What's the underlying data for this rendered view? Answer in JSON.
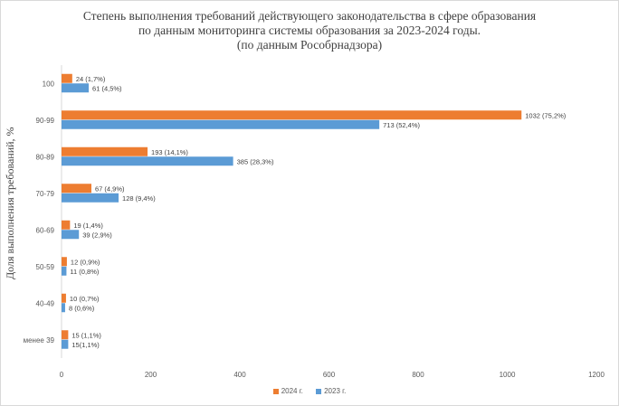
{
  "chart_data": {
    "type": "bar",
    "orientation": "horizontal",
    "title_lines": [
      "Степень выполнения требований действующего законодательства  в сфере образования",
      "по данным мониторинга системы образования за 2023-2024  годы.",
      "(по данным Рособрнадзора)"
    ],
    "ylabel": "Доля выполнения  требований, %",
    "xlabel": "",
    "xlim": [
      0,
      1200
    ],
    "xticks": [
      0,
      200,
      400,
      600,
      800,
      1000,
      1200
    ],
    "categories": [
      "100",
      "90-99",
      "80-89",
      "70-79",
      "60-69",
      "50-59",
      "40-49",
      "менее 39"
    ],
    "series": [
      {
        "name": "2024 г.",
        "color": "#ed7d31",
        "values": [
          24,
          1032,
          193,
          67,
          19,
          12,
          10,
          15
        ],
        "labels": [
          "24 (1,7%)",
          "1032 (75,2%)",
          "193 (14,1%)",
          "67 (4,9%)",
          "19 (1,4%)",
          "12 (0,9%)",
          "10 (0,7%)",
          "15 (1,1%)"
        ]
      },
      {
        "name": "2023 г.",
        "color": "#5b9bd5",
        "values": [
          61,
          713,
          385,
          128,
          39,
          11,
          8,
          15
        ],
        "labels": [
          "61 (4,5%)",
          "713 (52,4%)",
          "385 (28,3%)",
          "128 (9,4%)",
          "39 (2,9%)",
          "11 (0,8%)",
          "8 (0,6%)",
          "15(1,1%)"
        ]
      }
    ],
    "legend_position": "bottom",
    "grid": false
  }
}
